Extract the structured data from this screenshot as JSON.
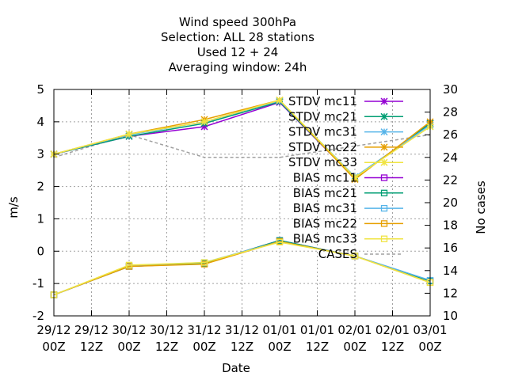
{
  "chart_data": {
    "type": "line",
    "title_lines": [
      "Wind speed 300hPa",
      "Selection: ALL      28 stations",
      "Used  12 + 24",
      "Averaging window: 24h"
    ],
    "xlabel": "Date",
    "ylabel": "m/s",
    "y2label": "No cases",
    "ylim": [
      -2,
      5
    ],
    "y2lim": [
      10,
      30
    ],
    "yticks": [
      "-2",
      "-1",
      "0",
      "1",
      "2",
      "3",
      "4",
      "5"
    ],
    "y2ticks": [
      "10",
      "12",
      "14",
      "16",
      "18",
      "20",
      "22",
      "24",
      "26",
      "28",
      "30"
    ],
    "x_ticks": [
      {
        "top": "29/12",
        "bottom": "00Z"
      },
      {
        "top": "29/12",
        "bottom": "12Z"
      },
      {
        "top": "30/12",
        "bottom": "00Z"
      },
      {
        "top": "30/12",
        "bottom": "12Z"
      },
      {
        "top": "31/12",
        "bottom": "00Z"
      },
      {
        "top": "31/12",
        "bottom": "12Z"
      },
      {
        "top": "01/01",
        "bottom": "00Z"
      },
      {
        "top": "01/01",
        "bottom": "12Z"
      },
      {
        "top": "02/01",
        "bottom": "00Z"
      },
      {
        "top": "02/01",
        "bottom": "12Z"
      },
      {
        "top": "03/01",
        "bottom": "00Z"
      }
    ],
    "x": [
      "29/12 00Z",
      "30/12 00Z",
      "31/12 00Z",
      "01/01 00Z",
      "02/01 00Z",
      "03/01 00Z"
    ],
    "legend_position": "top-right",
    "grid": true,
    "series": [
      {
        "name": "STDV mc11",
        "axis": "y1",
        "color": "#9400d3",
        "marker": "x-star",
        "values": [
          3.0,
          3.55,
          3.85,
          4.6,
          2.25,
          3.95
        ]
      },
      {
        "name": "STDV mc21",
        "axis": "y1",
        "color": "#009e73",
        "marker": "x-star",
        "values": [
          3.0,
          3.55,
          3.95,
          4.62,
          2.25,
          3.95
        ]
      },
      {
        "name": "STDV mc31",
        "axis": "y1",
        "color": "#56b4e9",
        "marker": "x-star",
        "values": [
          3.0,
          3.6,
          4.0,
          4.65,
          2.3,
          3.9
        ]
      },
      {
        "name": "STDV mc22",
        "axis": "y1",
        "color": "#e69f00",
        "marker": "x-star",
        "values": [
          3.0,
          3.62,
          4.07,
          4.67,
          2.22,
          4.0
        ]
      },
      {
        "name": "STDV mc33",
        "axis": "y1",
        "color": "#f0e442",
        "marker": "x-star",
        "values": [
          3.0,
          3.62,
          4.0,
          4.67,
          2.28,
          3.85
        ]
      },
      {
        "name": "BIAS mc11",
        "axis": "y1",
        "color": "#9400d3",
        "marker": "square",
        "values": [
          -1.35,
          -0.47,
          -0.38,
          0.33,
          -0.15,
          -0.92
        ]
      },
      {
        "name": "BIAS mc21",
        "axis": "y1",
        "color": "#009e73",
        "marker": "square",
        "values": [
          -1.35,
          -0.47,
          -0.38,
          0.33,
          -0.15,
          -0.92
        ]
      },
      {
        "name": "BIAS mc31",
        "axis": "y1",
        "color": "#56b4e9",
        "marker": "square",
        "values": [
          -1.35,
          -0.45,
          -0.35,
          0.3,
          -0.15,
          -0.9
        ]
      },
      {
        "name": "BIAS mc22",
        "axis": "y1",
        "color": "#e69f00",
        "marker": "square",
        "values": [
          -1.35,
          -0.47,
          -0.4,
          0.3,
          -0.15,
          -0.97
        ]
      },
      {
        "name": "BIAS mc33",
        "axis": "y1",
        "color": "#f0e442",
        "marker": "square",
        "values": [
          -1.35,
          -0.43,
          -0.35,
          0.28,
          -0.15,
          -0.97
        ]
      },
      {
        "name": "CASES",
        "axis": "y2",
        "color": "#a0a0a0",
        "marker": "none",
        "dashed": true,
        "values": [
          24,
          26,
          24,
          24,
          25,
          26
        ]
      }
    ]
  }
}
